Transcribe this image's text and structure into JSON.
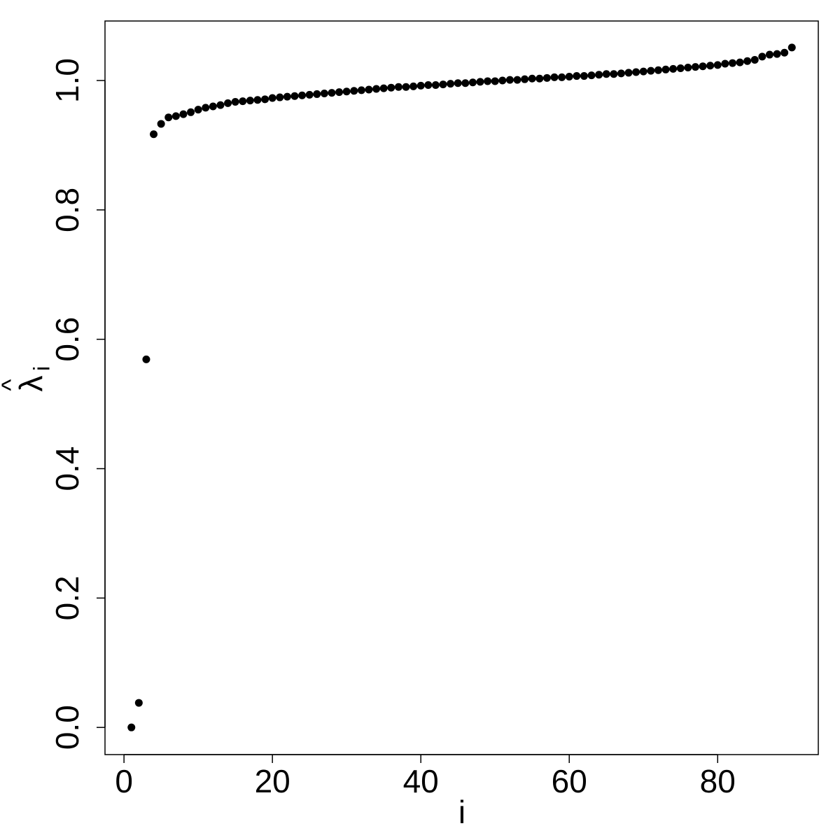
{
  "chart_data": {
    "type": "scatter",
    "x_label": "i",
    "y_label": {
      "symbol": "λ",
      "accent": "^",
      "subscript": "i"
    },
    "color": "#000000",
    "x": [
      1,
      2,
      3,
      4,
      5,
      6,
      7,
      8,
      9,
      10,
      11,
      12,
      13,
      14,
      15,
      16,
      17,
      18,
      19,
      20,
      21,
      22,
      23,
      24,
      25,
      26,
      27,
      28,
      29,
      30,
      31,
      32,
      33,
      34,
      35,
      36,
      37,
      38,
      39,
      40,
      41,
      42,
      43,
      44,
      45,
      46,
      47,
      48,
      49,
      50,
      51,
      52,
      53,
      54,
      55,
      56,
      57,
      58,
      59,
      60,
      61,
      62,
      63,
      64,
      65,
      66,
      67,
      68,
      69,
      70,
      71,
      72,
      73,
      74,
      75,
      76,
      77,
      78,
      79,
      80,
      81,
      82,
      83,
      84,
      85,
      86,
      87,
      88,
      89,
      90
    ],
    "values": [
      0,
      0.038,
      0.569,
      0.917,
      0.933,
      0.943,
      0.945,
      0.948,
      0.951,
      0.955,
      0.958,
      0.96,
      0.962,
      0.965,
      0.967,
      0.968,
      0.969,
      0.97,
      0.971,
      0.973,
      0.974,
      0.975,
      0.976,
      0.977,
      0.978,
      0.979,
      0.98,
      0.981,
      0.982,
      0.983,
      0.984,
      0.985,
      0.986,
      0.987,
      0.988,
      0.989,
      0.99,
      0.99,
      0.991,
      0.992,
      0.993,
      0.993,
      0.994,
      0.995,
      0.996,
      0.996,
      0.997,
      0.998,
      0.999,
      0.999,
      1.0,
      1.001,
      1.001,
      1.002,
      1.003,
      1.003,
      1.004,
      1.005,
      1.005,
      1.006,
      1.007,
      1.007,
      1.008,
      1.009,
      1.01,
      1.01,
      1.011,
      1.012,
      1.013,
      1.014,
      1.015,
      1.016,
      1.017,
      1.018,
      1.019,
      1.02,
      1.021,
      1.022,
      1.023,
      1.024,
      1.026,
      1.027,
      1.028,
      1.03,
      1.032,
      1.037,
      1.04,
      1.041,
      1.043,
      1.051
    ],
    "xlim": [
      -2.56,
      93.56
    ],
    "ylim": [
      -0.042,
      1.092
    ],
    "xticks": [
      0,
      20,
      40,
      60,
      80
    ],
    "yticks": [
      {
        "value": 0,
        "label": "0.0"
      },
      0.2,
      0.4,
      0.6,
      0.8,
      {
        "value": 1,
        "label": "1.0"
      }
    ]
  }
}
